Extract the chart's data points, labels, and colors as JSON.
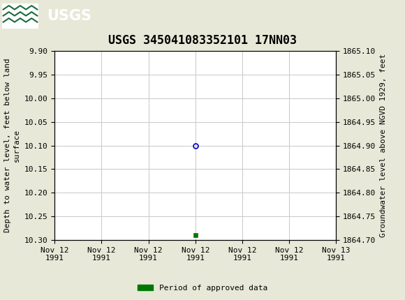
{
  "title": "USGS 345041083352101 17NN03",
  "left_ylabel": "Depth to water level, feet below land\nsurface",
  "right_ylabel": "Groundwater level above NGVD 1929, feet",
  "ylim_left_top": 9.9,
  "ylim_left_bottom": 10.3,
  "ylim_right_top": 1865.1,
  "ylim_right_bottom": 1864.7,
  "y_ticks_left": [
    9.9,
    9.95,
    10.0,
    10.05,
    10.1,
    10.15,
    10.2,
    10.25,
    10.3
  ],
  "y_ticks_right": [
    1865.1,
    1865.05,
    1865.0,
    1864.95,
    1864.9,
    1864.85,
    1864.8,
    1864.75,
    1864.7
  ],
  "data_point_x": 12.0,
  "data_point_y": 10.1,
  "green_point_x": 12.0,
  "green_point_y": 10.29,
  "x_tick_positions": [
    0,
    4,
    8,
    12,
    16,
    20,
    24
  ],
  "x_tick_labels": [
    "Nov 12\n1991",
    "Nov 12\n1991",
    "Nov 12\n1991",
    "Nov 12\n1991",
    "Nov 12\n1991",
    "Nov 12\n1991",
    "Nov 13\n1991"
  ],
  "header_bg_color": "#1a6b3c",
  "figure_bg_color": "#e8e8d8",
  "plot_bg_color": "#ffffff",
  "grid_color": "#c8c8c8",
  "marker_color": "#0000bb",
  "green_marker_color": "#007700",
  "legend_label": "Period of approved data",
  "title_fontsize": 12,
  "axis_label_fontsize": 8,
  "tick_fontsize": 8,
  "font_family": "monospace"
}
